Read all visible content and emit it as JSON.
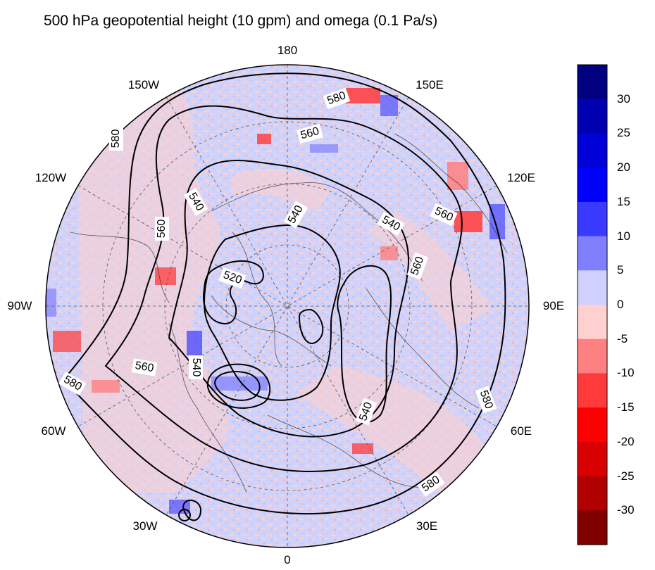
{
  "title": "500 hPa geopotential height (10 gpm) and omega (0.1 Pa/s)",
  "longitude_labels": {
    "lon_180": "180",
    "lon_150e": "150E",
    "lon_120e": "120E",
    "lon_90e": "90E",
    "lon_60e": "60E",
    "lon_30e": "30E",
    "lon_0": "0",
    "lon_30w": "30W",
    "lon_60w": "60W",
    "lon_90w": "90W",
    "lon_120w": "120W",
    "lon_150w": "150W"
  },
  "contour_labels": {
    "c580_top": "580",
    "c580_left": "580",
    "c560_top": "560",
    "c540_left": "540",
    "c540_center": "540",
    "c540_right": "540",
    "c560_right": "560",
    "c560_right2": "560",
    "c560_left": "560",
    "c520": "520",
    "c560_lower_left": "560",
    "c540_lower_left": "540",
    "c580_lower_left": "580",
    "c540_lower": "540",
    "c580_right": "580",
    "c580_bottom": "580"
  },
  "colorbar": {
    "tick_labels": [
      "30",
      "25",
      "20",
      "15",
      "10",
      "5",
      "0",
      "-5",
      "-10",
      "-15",
      "-20",
      "-25",
      "-30"
    ],
    "colors": [
      "#000080",
      "#0000b0",
      "#0000d8",
      "#0000ff",
      "#3a3aff",
      "#8080ff",
      "#d0d0ff",
      "#ffd0d0",
      "#ff8080",
      "#ff3a3a",
      "#ff0000",
      "#d80000",
      "#b00000",
      "#800000"
    ]
  },
  "colors": {
    "positive_omega": "#cfd3fb",
    "negative_omega": "#fbd0d0",
    "contour": "#000000"
  }
}
